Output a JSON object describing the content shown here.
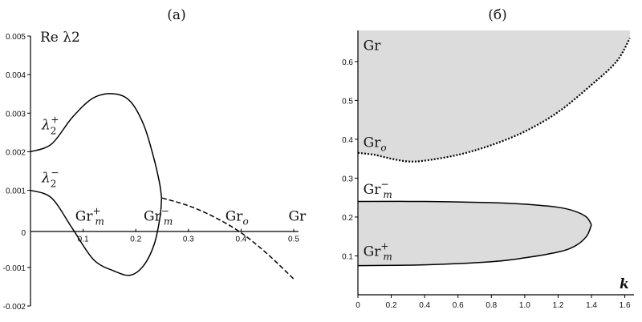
{
  "chart_data": [
    {
      "type": "line",
      "title": "(а)",
      "ylabel": "Re λ2",
      "xlim": [
        0,
        0.5
      ],
      "ylim": [
        -0.002,
        0.005
      ],
      "xticks": [
        "0.1",
        "0.2",
        "0.3",
        "0.4",
        "0.5"
      ],
      "yticks": [
        "-0.002",
        "-0.001",
        "0.001",
        "0.002",
        "0.003",
        "0.004",
        "0.005"
      ],
      "xtick_values": [
        0.1,
        0.2,
        0.3,
        0.4,
        0.5
      ],
      "ytick_values": [
        -0.002,
        -0.001,
        0.001,
        0.002,
        0.003,
        0.004,
        0.005
      ],
      "series": [
        {
          "name": "λ2+",
          "style": "solid",
          "x": [
            0.0,
            0.04,
            0.08,
            0.12,
            0.16,
            0.19,
            0.215,
            0.233,
            0.245,
            0.249
          ],
          "y": [
            0.002,
            0.0022,
            0.0029,
            0.0034,
            0.0035,
            0.0033,
            0.0027,
            0.0019,
            0.0012,
            0.0008
          ]
        },
        {
          "name": "λ2−",
          "style": "solid",
          "x": [
            0.0,
            0.04,
            0.08,
            0.12,
            0.16,
            0.19,
            0.215,
            0.235,
            0.246,
            0.249
          ],
          "y": [
            0.001,
            0.0008,
            0.0,
            -0.0008,
            -0.0011,
            -0.0012,
            -0.00095,
            -0.0004,
            0.0003,
            0.0008
          ]
        },
        {
          "name": "",
          "style": "dashed",
          "x": [
            0.25,
            0.3,
            0.35,
            0.4,
            0.45,
            0.5
          ],
          "y": [
            0.0008,
            0.0006,
            0.0003,
            -0.0001,
            -0.00065,
            -0.0013
          ]
        }
      ],
      "annotations": [
        {
          "text": "Gr",
          "sup": "+",
          "sub": "m",
          "x": 0.085,
          "y": 0.0
        },
        {
          "text": "Gr",
          "sup": "−",
          "sub": "m",
          "x": 0.215,
          "y": 0.0
        },
        {
          "text": "Gr",
          "sup": "",
          "sub": "o",
          "x": 0.37,
          "y": 0.0
        },
        {
          "text": "Gr",
          "sup": "",
          "sub": "",
          "x": 0.49,
          "y": 0.0
        }
      ]
    },
    {
      "type": "area",
      "title": "(б)",
      "xlabel": "k",
      "ylabel": "Gr",
      "xlim": [
        0,
        1.65
      ],
      "ylim": [
        0,
        0.68
      ],
      "xticks": [
        "0",
        "0.2",
        "0.4",
        "0.6",
        "0.8",
        "1.0",
        "1.2",
        "1.4",
        "1.6"
      ],
      "yticks": [
        "0.1",
        "0.2",
        "0.3",
        "0.4",
        "0.5",
        "0.6"
      ],
      "xtick_values": [
        0,
        0.2,
        0.4,
        0.6,
        0.8,
        1.0,
        1.2,
        1.4,
        1.6
      ],
      "ytick_values": [
        0.1,
        0.2,
        0.3,
        0.4,
        0.5,
        0.6
      ],
      "series": [
        {
          "name": "Gro",
          "style": "dotted",
          "fill": "#dcdcdc",
          "fill_to": "top",
          "x": [
            0.0,
            0.1,
            0.2,
            0.3,
            0.4,
            0.6,
            0.8,
            1.0,
            1.2,
            1.4,
            1.55,
            1.63
          ],
          "y": [
            0.365,
            0.36,
            0.35,
            0.343,
            0.345,
            0.36,
            0.385,
            0.42,
            0.47,
            0.54,
            0.6,
            0.66
          ]
        },
        {
          "name": "Grm−",
          "style": "solid",
          "fill": "#dcdcdc",
          "x": [
            0.0,
            0.4,
            0.8,
            1.0,
            1.2,
            1.3,
            1.37,
            1.4
          ],
          "y": [
            0.24,
            0.24,
            0.237,
            0.233,
            0.225,
            0.215,
            0.2,
            0.18
          ]
        },
        {
          "name": "Grm+",
          "style": "solid",
          "fill": "#dcdcdc",
          "x": [
            0.0,
            0.4,
            0.8,
            1.0,
            1.2,
            1.3,
            1.37,
            1.4
          ],
          "y": [
            0.075,
            0.077,
            0.085,
            0.095,
            0.11,
            0.125,
            0.15,
            0.18
          ]
        }
      ],
      "annotations": [
        {
          "text": "Gr",
          "sup": "",
          "sub": "",
          "x": 0.08,
          "y": 0.63
        },
        {
          "text": "Gr",
          "sup": "",
          "sub": "o",
          "x": 0.08,
          "y": 0.38
        },
        {
          "text": "Gr",
          "sup": "−",
          "sub": "m",
          "x": 0.08,
          "y": 0.26
        },
        {
          "text": "Gr",
          "sup": "+",
          "sub": "m",
          "x": 0.08,
          "y": 0.1
        }
      ]
    }
  ]
}
